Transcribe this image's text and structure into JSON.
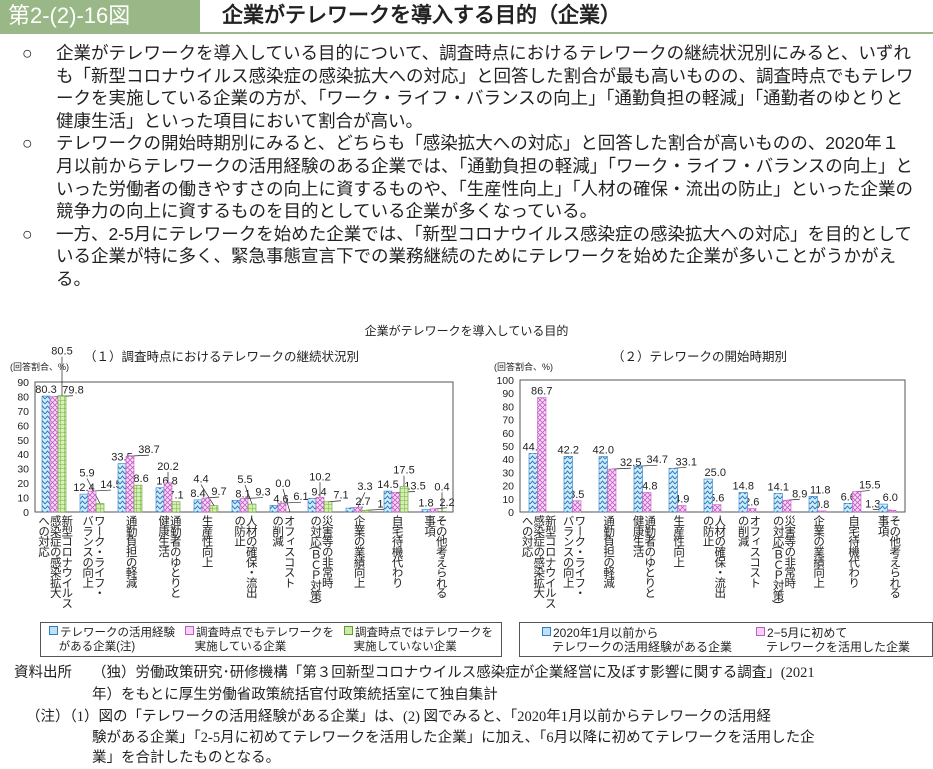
{
  "header": {
    "figure_number": "第2-(2)-16図",
    "title": "企業がテレワークを導入する目的（企業）"
  },
  "paragraphs": [
    {
      "marker": "○",
      "text": "企業がテレワークを導入している目的について、調査時点におけるテレワークの継続状況別にみると、いずれも「新型コロナウイルス感染症の感染拡大への対応」と回答した割合が最も高いものの、調査時点でもテレワークを実施している企業の方が、「ワーク・ライフ・バランスの向上」「通勤負担の軽減」「通勤者のゆとりと健康生活」といった項目において割合が高い。"
    },
    {
      "marker": "○",
      "text": "テレワークの開始時期別にみると、どちらも「感染拡大への対応」と回答した割合が高いものの、2020年１月以前からテレワークの活用経験のある企業では、「通勤負担の軽減」「ワーク・ライフ・バランスの向上」といった労働者の働きやすさの向上に資するものや、「生産性向上」「人材の確保・流出の防止」といった企業の競争力の向上に資するものを目的としている企業が多くなっている。"
    },
    {
      "marker": "○",
      "text": "一方、2-5月にテレワークを始めた企業では、「新型コロナウイルス感染症の感染拡大への対応」を目的としている企業が特に多く、緊急事態宣言下での業務継続のためにテレワークを始めた企業が多いことがうかがえる。"
    }
  ],
  "chart_super_title": "企業がテレワークを導入している目的",
  "chart_data": [
    {
      "type": "bar",
      "title": "（１）調査時点におけるテレワークの継続状況別",
      "ylabel": "(回答割合、%)",
      "ylim": [
        0,
        90
      ],
      "yticks": [
        0,
        10,
        20,
        30,
        40,
        50,
        60,
        70,
        80,
        90
      ],
      "categories": [
        "新型コロナウイルス感染症の感染拡大への対応",
        "ワーク・ライフ・バランスの向上",
        "通勤負担の軽減",
        "通勤者のゆとりと健康生活",
        "生産性向上",
        "人材の確保・流出の防止",
        "オフィスコストの削減",
        "災害等の非常時の対応（ＢＣＰ対策）",
        "企業の業績向上",
        "自宅待機代わり",
        "その他考えられる事項"
      ],
      "category_labels": [
        "新型コロナウイルス\n感染症の感染拡大\nへの対応",
        "ワーク・ライフ・\nバランスの向上",
        "通勤負担の軽減",
        "通勤者のゆとりと\n健康生活",
        "生産性向上",
        "人材の確保・流出\nの防止",
        "オフィスコスト\nの削減",
        "災害等の非常時\nの対応(ＢＣＰ対策)",
        "企業の業績向上",
        "自宅待機代わり",
        "その他考えられる\n事項"
      ],
      "series": [
        {
          "name": "テレワークの活用経験がある企業(注)",
          "values": [
            80.3,
            12.4,
            33.5,
            16.8,
            8.4,
            8.1,
            4.6,
            9.4,
            2.7,
            14.5,
            1.8
          ],
          "color": "#bfe0f5",
          "stroke": "#2b7fc4"
        },
        {
          "name": "調査時点でもテレワークを実施している企業",
          "values": [
            79.8,
            14.5,
            38.7,
            20.2,
            9.7,
            9.3,
            6.1,
            10.2,
            3.3,
            13.5,
            2.2
          ],
          "color": "#f6d2f6",
          "stroke": "#c45cc4"
        },
        {
          "name": "調査時点ではテレワークを実施していない企業",
          "values": [
            80.5,
            5.9,
            18.6,
            7.1,
            4.4,
            5.5,
            0.0,
            7.1,
            1.2,
            17.5,
            0.4
          ],
          "color": "#cdeaa6",
          "stroke": "#5e9e2e"
        }
      ],
      "legend_lines": [
        [
          "テレワークの活用経験",
          "がある企業(注)"
        ],
        [
          "調査時点でもテレワークを",
          "実施している企業"
        ],
        [
          "調査時点ではテレワークを",
          "実施していない企業"
        ]
      ],
      "legend": "bottom",
      "grid": false
    },
    {
      "type": "bar",
      "title": "（２）テレワークの開始時期別",
      "ylabel": "(回答割合、%)",
      "ylim": [
        0,
        100
      ],
      "yticks": [
        0,
        10,
        20,
        30,
        40,
        50,
        60,
        70,
        80,
        90,
        100
      ],
      "categories": [
        "新型コロナウイルス感染症の感染拡大への対応",
        "ワーク・ライフ・バランスの向上",
        "通勤負担の軽減",
        "通勤者のゆとりと健康生活",
        "生産性向上",
        "人材の確保・流出の防止",
        "オフィスコストの削減",
        "災害等の非常時の対応（ＢＣＰ対策）",
        "企業の業績向上",
        "自宅待機代わり",
        "その他考えられる事項"
      ],
      "category_labels": [
        "新型コロナウイルス\n感染症の感染拡大\nへの対応",
        "ワーク・ライフ・\nバランスの向上",
        "通勤負担の軽減",
        "通勤者のゆとりと\n健康生活",
        "生産性向上",
        "人材の確保・流出\nの防止",
        "オフィスコスト\nの削減",
        "災害等の非常時\nの対応(ＢＣＰ対策)",
        "企業の業績向上",
        "自宅待機代わり",
        "その他考えられる\n事項"
      ],
      "series": [
        {
          "name": "2020年1月以前からテレワークの活用経験がある企業",
          "values": [
            44.4,
            42.2,
            42.0,
            34.7,
            33.1,
            25.0,
            14.8,
            14.1,
            11.8,
            6.6,
            6.0
          ],
          "color": "#bfe0f5",
          "stroke": "#2b7fc4"
        },
        {
          "name": "2−5月に初めてテレワークを活用した企業",
          "values": [
            86.7,
            8.5,
            32.5,
            14.8,
            4.9,
            5.6,
            2.6,
            8.9,
            0.8,
            15.5,
            1.3
          ],
          "color": "#f6d2f6",
          "stroke": "#c45cc4"
        }
      ],
      "legend_lines": [
        [
          "2020年1月以前から",
          "テレワークの活用経験がある企業"
        ],
        [
          "2−5月に初めて",
          "テレワークを活用した企業"
        ]
      ],
      "legend": "bottom",
      "grid": false
    }
  ],
  "source": {
    "label": "資料出所",
    "line1": "（独）労働政策研究･研修機構「第３回新型コロナウイルス感染症が企業経営に及ぼす影響に関する調査」(2021",
    "line2": "年）をもとに厚生労働省政策統括官付政策統括室にて独自集計",
    "note1": "（注）（1）図の「テレワークの活用経験がある企業」は、(2) 図でみると、「2020年1月以前からテレワークの活用経",
    "note2": "験がある企業」「2-5月に初めてテレワークを活用した企業」に加え、「6月以降に初めてテレワークを活用した企",
    "note3": "業」を合計したものとなる。"
  }
}
